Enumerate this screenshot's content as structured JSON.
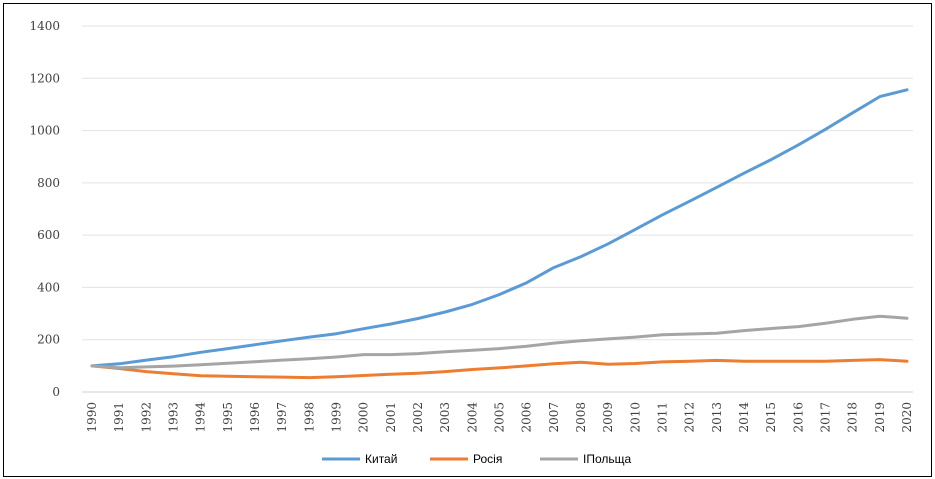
{
  "chart_data": {
    "type": "line",
    "x": [
      "1990",
      "1991",
      "1992",
      "1993",
      "1994",
      "1995",
      "1996",
      "1997",
      "1998",
      "1999",
      "2000",
      "2001",
      "2002",
      "2003",
      "2004",
      "2005",
      "2006",
      "2007",
      "2008",
      "2009",
      "2010",
      "2011",
      "2012",
      "2013",
      "2014",
      "2015",
      "2016",
      "2017",
      "2018",
      "2019",
      "2020"
    ],
    "ylim": [
      0,
      1400
    ],
    "yticks": [
      0,
      200,
      400,
      600,
      800,
      1000,
      1200,
      1400
    ],
    "grid": true,
    "legend_position": "bottom",
    "series": [
      {
        "name": "Китай",
        "color": "#5B9BD5",
        "values": [
          100,
          108,
          122,
          135,
          152,
          166,
          181,
          196,
          210,
          223,
          242,
          260,
          281,
          306,
          335,
          373,
          418,
          476,
          518,
          567,
          622,
          678,
          730,
          783,
          837,
          889,
          945,
          1005,
          1068,
          1130,
          1156
        ]
      },
      {
        "name": "Росія",
        "color": "#ED7D31",
        "values": [
          100,
          90,
          78,
          70,
          62,
          60,
          58,
          57,
          55,
          58,
          63,
          68,
          72,
          78,
          86,
          92,
          100,
          108,
          114,
          106,
          109,
          115,
          118,
          121,
          118,
          118,
          118,
          118,
          121,
          124,
          118
        ]
      },
      {
        "name": "ІПольща",
        "color": "#A5A5A5",
        "values": [
          100,
          93,
          96,
          99,
          104,
          110,
          116,
          122,
          127,
          134,
          143,
          143,
          147,
          154,
          160,
          166,
          175,
          187,
          196,
          203,
          210,
          219,
          222,
          225,
          235,
          243,
          250,
          263,
          278,
          290,
          282
        ]
      }
    ]
  }
}
